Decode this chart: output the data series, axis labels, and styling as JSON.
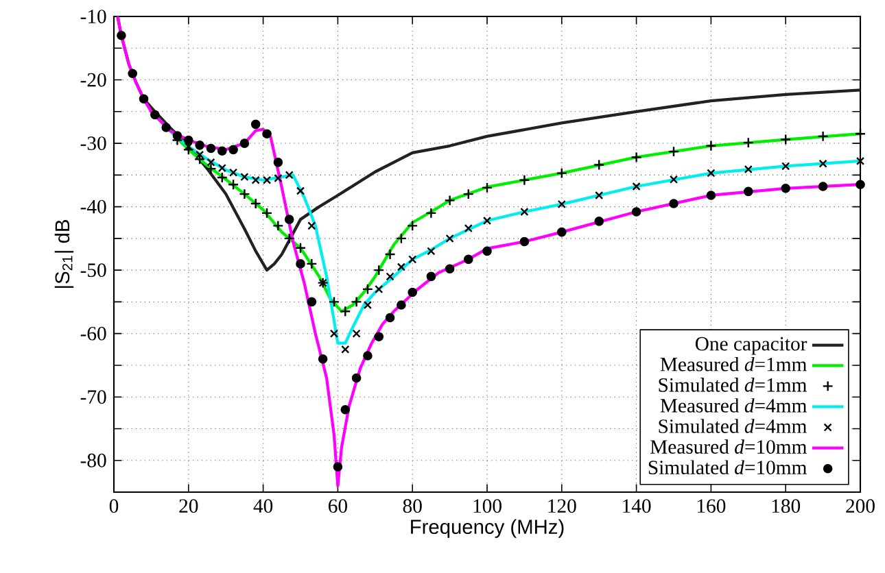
{
  "chart_data": {
    "type": "line",
    "xlabel": "Frequency (MHz)",
    "ylabel": "|S$_{21}$| dB",
    "xlim": [
      0,
      200
    ],
    "ylim": [
      -85,
      -10
    ],
    "xticks": [
      0,
      20,
      40,
      60,
      80,
      100,
      120,
      140,
      160,
      180,
      200
    ],
    "yticks": [
      -10,
      {
        "value": -15,
        "label": null
      },
      -20,
      {
        "value": -25,
        "label": null
      },
      -30,
      {
        "value": -35,
        "label": null
      },
      -40,
      {
        "value": -45,
        "label": null
      },
      -50,
      {
        "value": -55,
        "label": null
      },
      -60,
      {
        "value": -65,
        "label": null
      },
      -70,
      {
        "value": -75,
        "label": null
      },
      -80
    ],
    "grid": true,
    "legend": "bottom right",
    "series": [
      {
        "name": "One capacitor",
        "color": "#222222",
        "marker": "none",
        "x": [
          1,
          2,
          4,
          6,
          8,
          11,
          15,
          20,
          25,
          30,
          35,
          38,
          41,
          43,
          45,
          50,
          55,
          60,
          70,
          80,
          90,
          100,
          120,
          140,
          160,
          180,
          200
        ],
        "values": [
          -10,
          -13,
          -17.5,
          -20.5,
          -23,
          -25,
          -27.5,
          -30.4,
          -34,
          -38,
          -43.5,
          -47,
          -50,
          -49,
          -47.5,
          -42,
          -40,
          -38.2,
          -34.5,
          -31.5,
          -30.4,
          -28.9,
          -26.8,
          -25,
          -23.3,
          -22.3,
          -21.6
        ]
      },
      {
        "name": "Measured *d*=1mm",
        "color": "#00ee00",
        "marker": "none",
        "x": [
          10,
          15,
          20,
          25,
          30,
          35,
          40,
          45,
          50,
          55,
          58,
          61,
          64,
          67,
          70,
          75,
          80,
          85,
          90,
          100,
          110,
          120,
          140,
          160,
          180,
          200
        ],
        "values": [
          -25,
          -28,
          -31,
          -33.5,
          -35.7,
          -38,
          -40.5,
          -44,
          -46.5,
          -51,
          -54.5,
          -56.5,
          -55.5,
          -53.5,
          -51,
          -46,
          -42.5,
          -40.8,
          -39,
          -36.9,
          -35.8,
          -34.7,
          -32.2,
          -30.4,
          -29.4,
          -28.5
        ]
      },
      {
        "name": "Simulated *d*=1mm",
        "type": "scatter",
        "color": "#000000",
        "x": [
          17,
          20,
          23,
          26,
          29,
          32,
          35,
          38,
          41,
          44,
          47,
          50,
          53,
          56,
          59,
          62,
          65,
          68,
          71,
          74,
          77,
          80,
          85,
          90,
          95,
          100,
          110,
          120,
          130,
          140,
          150,
          160,
          170,
          180,
          190,
          200
        ],
        "values": [
          -29.5,
          -31,
          -32.5,
          -34,
          -35.4,
          -36.5,
          -38,
          -39.5,
          -41,
          -43,
          -45,
          -46.5,
          -49,
          -52,
          -55,
          -56.5,
          -55,
          -53,
          -50,
          -47.5,
          -45,
          -43,
          -41,
          -39,
          -38,
          -37,
          -35.8,
          -34.7,
          -33.4,
          -32.2,
          -31.3,
          -30.4,
          -29.9,
          -29.4,
          -28.9,
          -28.5
        ]
      },
      {
        "name": "Measured *d*=4mm",
        "color": "#00eeee",
        "marker": "none",
        "x": [
          10,
          15,
          20,
          25,
          30,
          35,
          40,
          45,
          48,
          51,
          54,
          57,
          60,
          62,
          64,
          67,
          70,
          75,
          80,
          85,
          90,
          100,
          110,
          120,
          140,
          160,
          180,
          200
        ],
        "values": [
          -25,
          -28,
          -30.5,
          -32.5,
          -34.2,
          -35.3,
          -35.8,
          -35.3,
          -35,
          -38.5,
          -43,
          -51,
          -61.5,
          -61.5,
          -59,
          -55.5,
          -53.5,
          -51,
          -48.3,
          -46.8,
          -45,
          -42.2,
          -40.8,
          -39.6,
          -36.8,
          -34.7,
          -33.6,
          -32.8
        ]
      },
      {
        "name": "Simulated *d*=4mm",
        "type": "scatter",
        "color": "#000000",
        "marker": "cross",
        "x": [
          20,
          23,
          26,
          29,
          32,
          35,
          38,
          41,
          44,
          47,
          50,
          53,
          56,
          59,
          62,
          65,
          68,
          71,
          74,
          77,
          80,
          85,
          90,
          95,
          100,
          110,
          120,
          130,
          140,
          150,
          160,
          170,
          180,
          190,
          200
        ],
        "values": [
          -30.5,
          -31.8,
          -33,
          -33.9,
          -34.6,
          -35.3,
          -35.8,
          -35.8,
          -35.5,
          -35,
          -37.5,
          -43,
          -52,
          -60,
          -62.5,
          -60,
          -55.5,
          -53,
          -51,
          -49.5,
          -48.3,
          -47,
          -45,
          -43.4,
          -42.2,
          -40.8,
          -39.6,
          -38.2,
          -36.8,
          -35.7,
          -34.7,
          -34.1,
          -33.6,
          -33.2,
          -32.8
        ]
      },
      {
        "name": "Measured *d*=10mm",
        "color": "#ff00ff",
        "marker": "none",
        "x": [
          1,
          2,
          4,
          6,
          8,
          10,
          15,
          20,
          25,
          30,
          35,
          38,
          40,
          42,
          45,
          48,
          51,
          54,
          57,
          59,
          60,
          61,
          63,
          66,
          69,
          72,
          75,
          81,
          87,
          95,
          100,
          110,
          120,
          140,
          160,
          180,
          200
        ],
        "values": [
          -10,
          -13,
          -17.5,
          -20.5,
          -23,
          -25,
          -28,
          -29.5,
          -30.5,
          -31,
          -30,
          -28,
          -27.8,
          -29,
          -37,
          -45.5,
          -52,
          -60,
          -67,
          -76,
          -84,
          -78,
          -71.5,
          -65.5,
          -61.6,
          -58.5,
          -56.5,
          -53.2,
          -50.4,
          -48.3,
          -46.6,
          -45.5,
          -44,
          -40.8,
          -38.2,
          -37.1,
          -36.5
        ]
      },
      {
        "name": "Simulated *d*=10mm",
        "type": "scatter",
        "color": "#000000",
        "marker": "circle",
        "x": [
          2,
          5,
          8,
          11,
          14,
          17,
          20,
          23,
          26,
          29,
          32,
          35,
          38,
          41,
          44,
          47,
          50,
          53,
          56,
          60,
          62,
          65,
          68,
          71,
          74,
          77,
          80,
          85,
          90,
          95,
          100,
          110,
          120,
          130,
          140,
          150,
          160,
          170,
          180,
          190,
          200
        ],
        "values": [
          -13,
          -19,
          -23,
          -25.5,
          -27.5,
          -28.8,
          -29.5,
          -30.3,
          -30.8,
          -31.2,
          -31,
          -30,
          -27,
          -28.5,
          -33,
          -42,
          -49,
          -55,
          -64,
          -81,
          -72,
          -67,
          -63.5,
          -60.5,
          -57.5,
          -55.5,
          -53.5,
          -51,
          -49.8,
          -48.3,
          -47,
          -45.5,
          -44,
          -42.3,
          -40.8,
          -39.5,
          -38.2,
          -37.6,
          -37.1,
          -36.8,
          -36.5
        ]
      }
    ]
  }
}
